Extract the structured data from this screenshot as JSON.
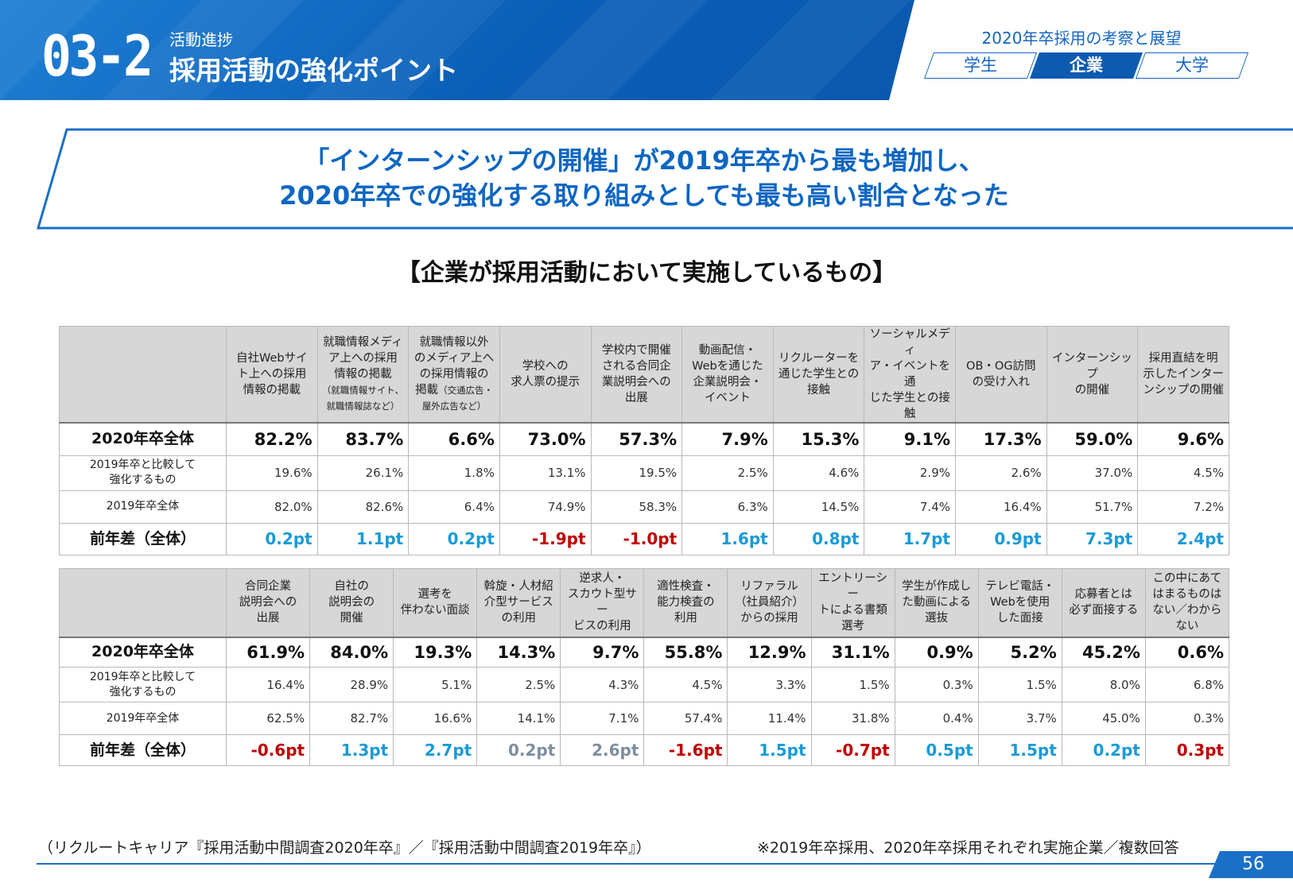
{
  "header": {
    "section_number": "03-2",
    "section_sub": "活動進捗",
    "section_title": "採用活動の強化ポイント",
    "report_title": "2020年卒採用の考察と展望",
    "tabs": [
      "学生",
      "企業",
      "大学"
    ],
    "active_tab": "企業",
    "colors": {
      "brand_blue": "#0d5bb0",
      "headline_blue": "#0d66c2",
      "positive_blue": "#1a9ad6",
      "negative_red": "#c00000"
    }
  },
  "headline": {
    "line1": "「インターンシップの開催」が2019年卒から最も増加し、",
    "line2": "2020年卒での強化する取り組みとしても最も高い割合となった"
  },
  "section_label": "【企業が採用活動において実施しているもの】",
  "row_labels": {
    "total_2020": "2020年卒全体",
    "strengthen_line1": "2019年卒と比較して",
    "strengthen_line2": "強化するもの",
    "total_2019": "2019年卒全体",
    "diff": "前年差（全体）"
  },
  "table1": {
    "columns": [
      {
        "lines": [
          "自社Webサイ",
          "ト上への採用",
          "情報の掲載"
        ],
        "note": []
      },
      {
        "lines": [
          "就職情報メディ",
          "ア上への採用",
          "情報の掲載"
        ],
        "note": [
          "（就職情報サイト、",
          "就職情報誌など）"
        ]
      },
      {
        "lines": [
          "就職情報以外",
          "のメディア上へ",
          "の採用情報の",
          "掲載"
        ],
        "note": [
          "（交通広告・",
          "屋外広告など）"
        ]
      },
      {
        "lines": [
          "学校への",
          "求人票の提示"
        ],
        "note": []
      },
      {
        "lines": [
          "学校内で開催",
          "される合同企",
          "業説明会への",
          "出展"
        ],
        "note": []
      },
      {
        "lines": [
          "動画配信・",
          "Webを通じた",
          "企業説明会・",
          "イベント"
        ],
        "note": []
      },
      {
        "lines": [
          "リクルーターを",
          "通じた学生との",
          "接触"
        ],
        "note": []
      },
      {
        "lines": [
          "ソーシャルメディ",
          "ア・イベントを通",
          "じた学生との接",
          "触"
        ],
        "note": []
      },
      {
        "lines": [
          "OB・OG訪問",
          "の受け入れ"
        ],
        "note": []
      },
      {
        "lines": [
          "インターンシップ",
          "の開催"
        ],
        "note": []
      },
      {
        "lines": [
          "採用直結を明",
          "示したインター",
          "ンシップの開催"
        ],
        "note": []
      }
    ],
    "total_2020": [
      "82.2%",
      "83.7%",
      "6.6%",
      "73.0%",
      "57.3%",
      "7.9%",
      "15.3%",
      "9.1%",
      "17.3%",
      "59.0%",
      "9.6%"
    ],
    "strengthen": [
      "19.6%",
      "26.1%",
      "1.8%",
      "13.1%",
      "19.5%",
      "2.5%",
      "4.6%",
      "2.9%",
      "2.6%",
      "37.0%",
      "4.5%"
    ],
    "total_2019": [
      "82.0%",
      "82.6%",
      "6.4%",
      "74.9%",
      "58.3%",
      "6.3%",
      "14.5%",
      "7.4%",
      "16.4%",
      "51.7%",
      "7.2%"
    ],
    "diff": [
      "0.2pt",
      "1.1pt",
      "0.2pt",
      "-1.9pt",
      "-1.0pt",
      "1.6pt",
      "0.8pt",
      "1.7pt",
      "0.9pt",
      "7.3pt",
      "2.4pt"
    ],
    "diff_colors": [
      "#1a9ad6",
      "#1a9ad6",
      "#1a9ad6",
      "#c00000",
      "#c00000",
      "#1a9ad6",
      "#1a9ad6",
      "#1a9ad6",
      "#1a9ad6",
      "#1a9ad6",
      "#1a9ad6"
    ]
  },
  "table2": {
    "columns": [
      {
        "lines": [
          "合同企業",
          "説明会への",
          "出展"
        ],
        "note": []
      },
      {
        "lines": [
          "自社の",
          "説明会の",
          "開催"
        ],
        "note": []
      },
      {
        "lines": [
          "選考を",
          "伴わない面談"
        ],
        "note": []
      },
      {
        "lines": [
          "斡旋・人材紹",
          "介型サービス",
          "の利用"
        ],
        "note": []
      },
      {
        "lines": [
          "逆求人・",
          "スカウト型サー",
          "ビスの利用"
        ],
        "note": []
      },
      {
        "lines": [
          "適性検査・",
          "能力検査の",
          "利用"
        ],
        "note": []
      },
      {
        "lines": [
          "リファラル",
          "（社員紹介）",
          "からの採用"
        ],
        "note": []
      },
      {
        "lines": [
          "エントリーシー",
          "トによる書類",
          "選考"
        ],
        "note": []
      },
      {
        "lines": [
          "学生が作成し",
          "た動画による",
          "選抜"
        ],
        "note": []
      },
      {
        "lines": [
          "テレビ電話・",
          "Webを使用",
          "した面接"
        ],
        "note": []
      },
      {
        "lines": [
          "応募者とは",
          "必ず面接する"
        ],
        "note": []
      },
      {
        "lines": [
          "この中にあて",
          "はまるものは",
          "ない／わから",
          "ない"
        ],
        "note": []
      }
    ],
    "total_2020": [
      "61.9%",
      "84.0%",
      "19.3%",
      "14.3%",
      "9.7%",
      "55.8%",
      "12.9%",
      "31.1%",
      "0.9%",
      "5.2%",
      "45.2%",
      "0.6%"
    ],
    "strengthen": [
      "16.4%",
      "28.9%",
      "5.1%",
      "2.5%",
      "4.3%",
      "4.5%",
      "3.3%",
      "1.5%",
      "0.3%",
      "1.5%",
      "8.0%",
      "6.8%"
    ],
    "total_2019": [
      "62.5%",
      "82.7%",
      "16.6%",
      "14.1%",
      "7.1%",
      "57.4%",
      "11.4%",
      "31.8%",
      "0.4%",
      "3.7%",
      "45.0%",
      "0.3%"
    ],
    "diff": [
      "-0.6pt",
      "1.3pt",
      "2.7pt",
      "0.2pt",
      "2.6pt",
      "-1.6pt",
      "1.5pt",
      "-0.7pt",
      "0.5pt",
      "1.5pt",
      "0.2pt",
      "0.3pt"
    ],
    "diff_colors": [
      "#c00000",
      "#1a9ad6",
      "#1a9ad6",
      "#7d8fa0",
      "#7d8fa0",
      "#c00000",
      "#1a9ad6",
      "#c00000",
      "#1a9ad6",
      "#1a9ad6",
      "#1a9ad6",
      "#c00000"
    ]
  },
  "footer": {
    "source": "（リクルートキャリア『採用活動中間調査2020年卒』／『採用活動中間調査2019年卒』）",
    "note": "※2019年卒採用、2020年卒採用それぞれ実施企業／複数回答",
    "page_number": "56"
  }
}
